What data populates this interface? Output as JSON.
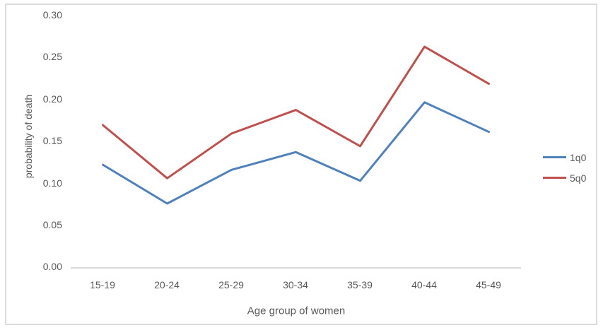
{
  "chart_data": {
    "type": "line",
    "categories": [
      "15-19",
      "20-24",
      "25-29",
      "30-34",
      "35-39",
      "40-44",
      "45-49"
    ],
    "series": [
      {
        "name": "1q0",
        "color": "#4F81BD",
        "values": [
          0.121,
          0.075,
          0.115,
          0.136,
          0.102,
          0.195,
          0.16
        ]
      },
      {
        "name": "5q0",
        "color": "#C0504D",
        "values": [
          0.168,
          0.105,
          0.158,
          0.186,
          0.143,
          0.261,
          0.217
        ]
      }
    ],
    "title": "",
    "xlabel": "Age group of women",
    "ylabel": "probability of death",
    "ylim": [
      0,
      0.3
    ],
    "ytick_step": 0.05,
    "yticklabels": [
      "0.30",
      "0.25",
      "0.20",
      "0.15",
      "0.10",
      "0.05",
      "0.00"
    ],
    "grid": false,
    "legend_position": "right",
    "frame_color": "#DCDCDC",
    "axis_line_color": "#D9D9D9",
    "text_color": "#595959"
  }
}
